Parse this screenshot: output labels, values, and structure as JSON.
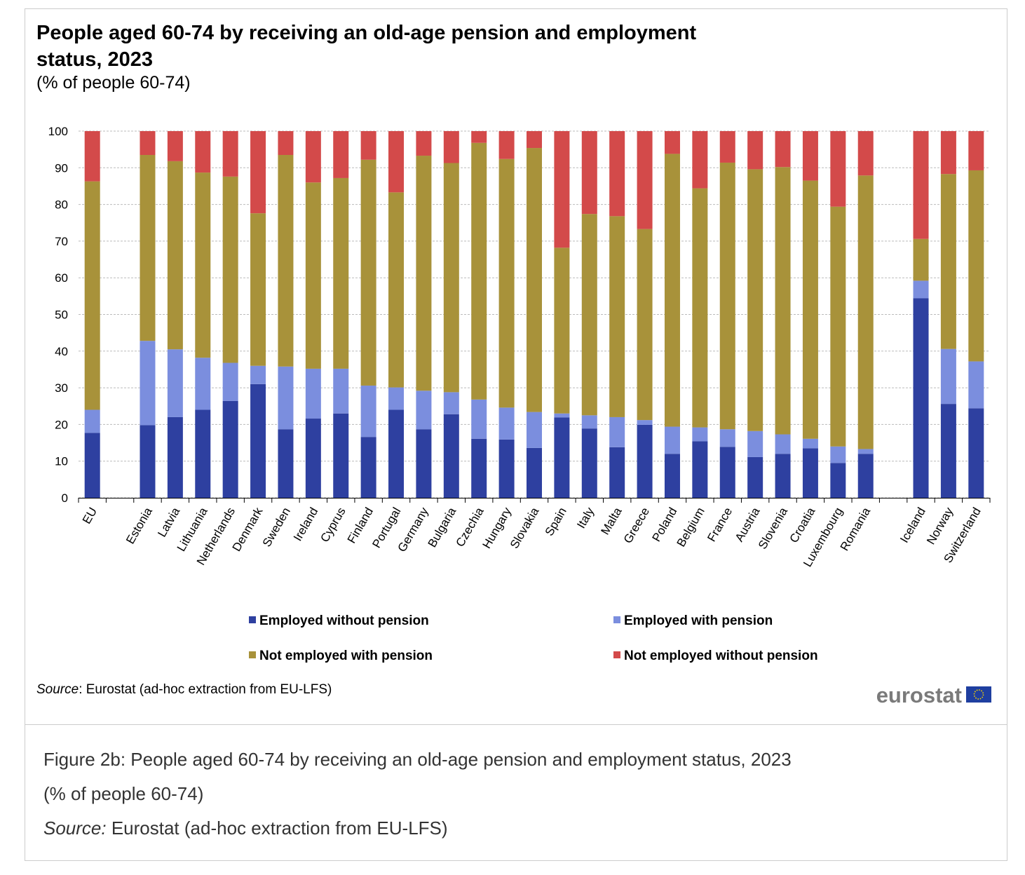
{
  "chart_data": {
    "type": "stacked-bar",
    "title": "People aged 60-74 by receiving an old-age pension and employment status, 2023",
    "subtitle": "(% of people 60-74)",
    "source_label": "Source",
    "source_text": ": Eurostat (ad-hoc extraction from EU-LFS)",
    "logo": "eurostat",
    "categories": [
      "EU",
      null,
      "Estonia",
      "Latvia",
      "Lithuania",
      "Netherlands",
      "Denmark",
      "Sweden",
      "Ireland",
      "Cyprus",
      "Finland",
      "Portugal",
      "Germany",
      "Bulgaria",
      "Czechia",
      "Hungary",
      "Slovakia",
      "Spain",
      "Italy",
      "Malta",
      "Greece",
      "Poland",
      "Belgium",
      "France",
      "Austria",
      "Slovenia",
      "Croatia",
      "Luxembourg",
      "Romania",
      null,
      "Iceland",
      "Norway",
      "Switzerland"
    ],
    "series": [
      {
        "name": "Employed without pension",
        "color": "#2e40a0",
        "values": [
          17.7,
          null,
          19.8,
          22,
          24,
          26.4,
          31,
          18.7,
          21.6,
          23,
          16.6,
          24,
          18.7,
          22.8,
          16.1,
          15.9,
          13.6,
          21.9,
          18.9,
          13.8,
          19.9,
          12,
          15.4,
          13.9,
          11.1,
          12,
          13.5,
          9.5,
          12,
          null,
          54.4,
          25.6,
          24.4
        ]
      },
      {
        "name": "Employed with pension",
        "color": "#7b8ede",
        "values": [
          6.3,
          null,
          23,
          18.5,
          14.2,
          10.4,
          5,
          17.1,
          13.6,
          12.2,
          14,
          6.1,
          10.5,
          6,
          10.7,
          8.7,
          9.8,
          1.1,
          3.6,
          8.2,
          1.3,
          7.4,
          3.8,
          4.8,
          7.1,
          5.3,
          2.6,
          4.5,
          1.3,
          null,
          4.8,
          15,
          12.8
        ]
      },
      {
        "name": "Not employed with pension",
        "color": "#a8923a",
        "values": [
          62.3,
          null,
          50.7,
          51.3,
          50.5,
          50.8,
          41.6,
          57.7,
          50.8,
          52,
          61.6,
          53.2,
          64.1,
          62.5,
          70,
          67.8,
          72,
          45.2,
          54.9,
          54.8,
          52.1,
          74.4,
          65.2,
          72.7,
          71.4,
          72.9,
          70.4,
          65.4,
          74.6,
          null,
          11.4,
          47.7,
          52.1
        ]
      },
      {
        "name": "Not employed without pension",
        "color": "#d34a4a",
        "values": [
          13.7,
          null,
          6.5,
          8.2,
          11.3,
          12.4,
          22.4,
          6.5,
          14,
          12.8,
          7.8,
          16.7,
          6.7,
          8.7,
          3.2,
          7.6,
          4.6,
          31.8,
          22.6,
          23.2,
          26.7,
          6.2,
          15.6,
          8.6,
          10.4,
          9.8,
          13.5,
          20.6,
          12.1,
          null,
          29.4,
          11.7,
          10.7
        ]
      }
    ],
    "ylim": [
      0,
      100
    ],
    "yticks": [
      0,
      10,
      20,
      30,
      40,
      50,
      60,
      70,
      80,
      90,
      100
    ],
    "grid": true,
    "legend": "bottom"
  },
  "figure_caption": {
    "title": "Figure 2b: People aged 60-74 by receiving an old-age pension and employment status, 2023",
    "subtitle": "(% of people 60-74)",
    "source_label": "Source:",
    "source_text": " Eurostat (ad-hoc extraction from EU-LFS)"
  }
}
